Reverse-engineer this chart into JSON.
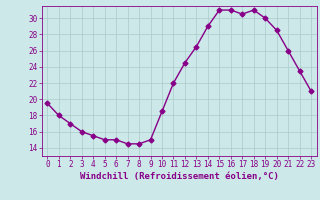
{
  "x": [
    0,
    1,
    2,
    3,
    4,
    5,
    6,
    7,
    8,
    9,
    10,
    11,
    12,
    13,
    14,
    15,
    16,
    17,
    18,
    19,
    20,
    21,
    22,
    23
  ],
  "y": [
    19.5,
    18.0,
    17.0,
    16.0,
    15.5,
    15.0,
    15.0,
    14.5,
    14.5,
    15.0,
    18.5,
    22.0,
    24.5,
    26.5,
    29.0,
    31.0,
    31.0,
    30.5,
    31.0,
    30.0,
    28.5,
    26.0,
    23.5,
    21.0
  ],
  "line_color": "#880088",
  "marker": "D",
  "marker_size": 2.5,
  "bg_color": "#cce8e8",
  "grid_color": "#aacccc",
  "xlabel": "Windchill (Refroidissement éolien,°C)",
  "xlim": [
    -0.5,
    23.5
  ],
  "ylim": [
    13.0,
    31.5
  ],
  "xticks": [
    0,
    1,
    2,
    3,
    4,
    5,
    6,
    7,
    8,
    9,
    10,
    11,
    12,
    13,
    14,
    15,
    16,
    17,
    18,
    19,
    20,
    21,
    22,
    23
  ],
  "yticks": [
    14,
    16,
    18,
    20,
    22,
    24,
    26,
    28,
    30
  ],
  "tick_fontsize": 5.5,
  "xlabel_fontsize": 6.5,
  "line_width": 1.0
}
